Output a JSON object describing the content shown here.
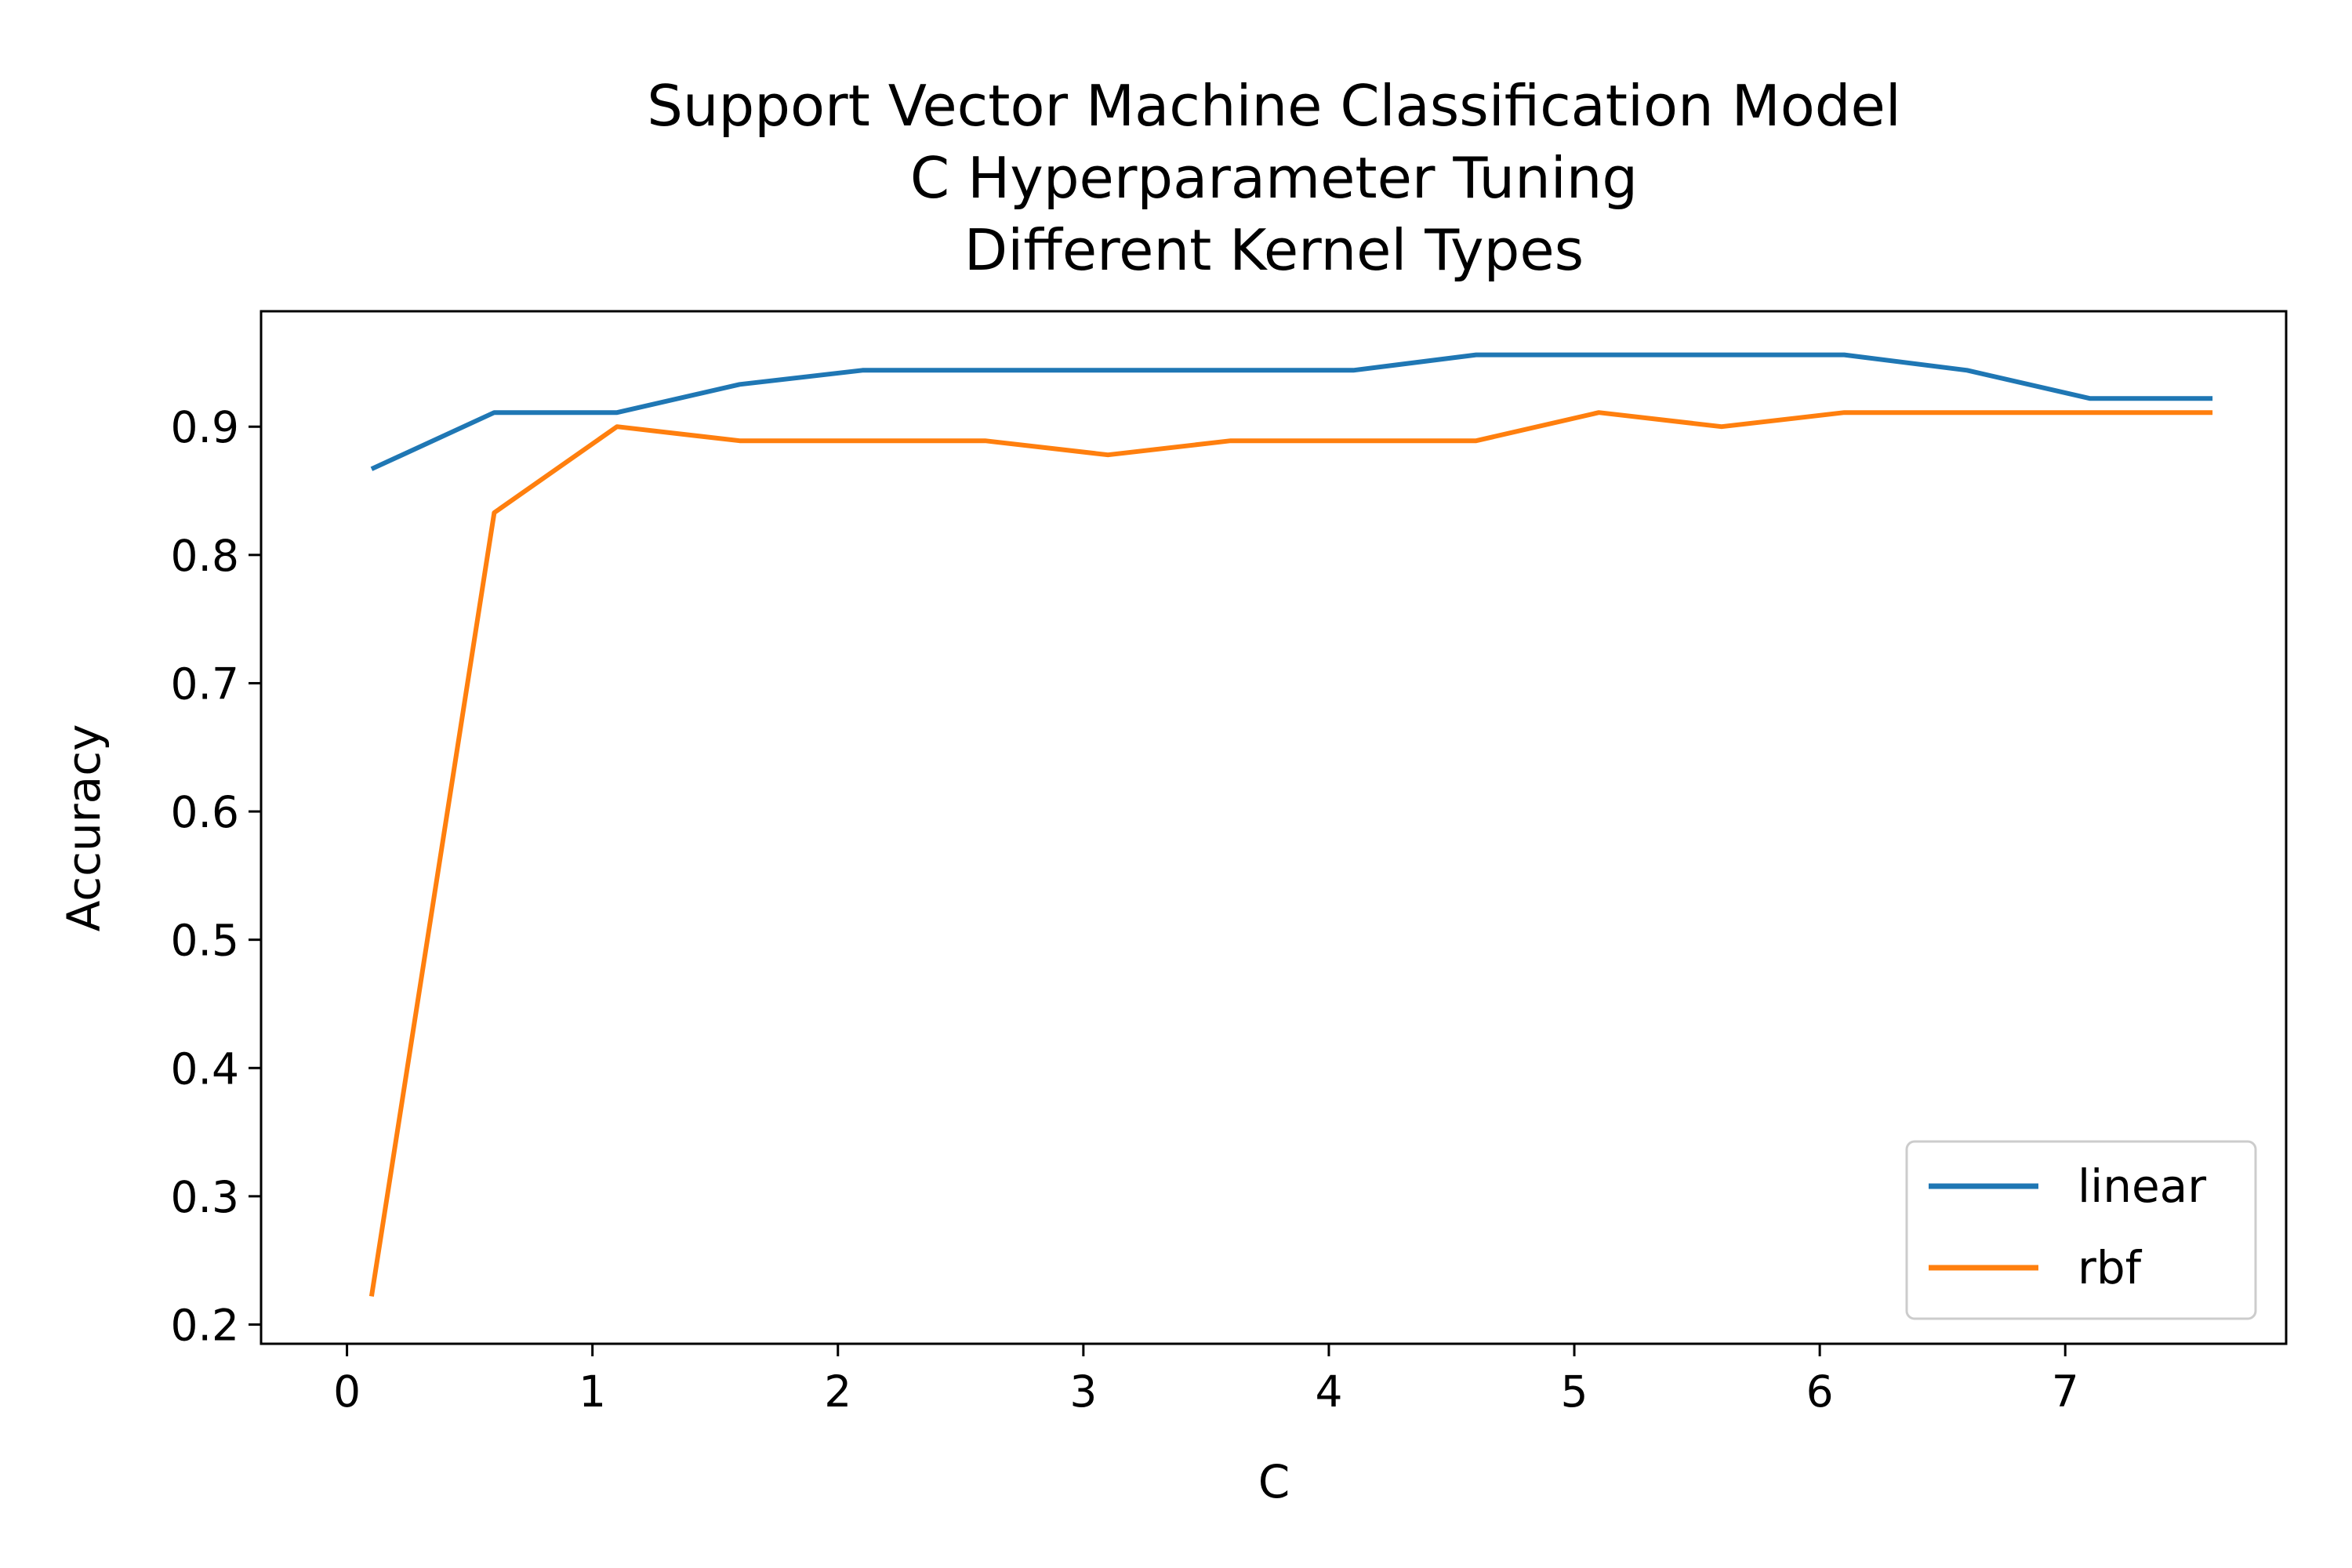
{
  "chart_data": {
    "type": "line",
    "title_lines": [
      "Support Vector Machine Classification Model",
      "C Hyperparameter Tuning",
      "Different Kernel Types"
    ],
    "xlabel": "C",
    "ylabel": "Accuracy",
    "xlim": [
      -0.35,
      7.9
    ],
    "ylim": [
      0.185,
      0.99
    ],
    "xticks": [
      0,
      1,
      2,
      3,
      4,
      5,
      6,
      7
    ],
    "xtick_labels": [
      "0",
      "1",
      "2",
      "3",
      "4",
      "5",
      "6",
      "7"
    ],
    "yticks": [
      0.2,
      0.3,
      0.4,
      0.5,
      0.6,
      0.7,
      0.8,
      0.9
    ],
    "ytick_labels": [
      "0.2",
      "0.3",
      "0.4",
      "0.5",
      "0.6",
      "0.7",
      "0.8",
      "0.9"
    ],
    "grid": false,
    "legend_position": "lower-right",
    "x": [
      0.1,
      0.6,
      1.1,
      1.6,
      2.1,
      2.6,
      3.1,
      3.6,
      4.1,
      4.6,
      5.1,
      5.6,
      6.1,
      6.6,
      7.1,
      7.6
    ],
    "series": [
      {
        "name": "linear",
        "color": "#1f77b4",
        "values": [
          0.867,
          0.911,
          0.911,
          0.933,
          0.944,
          0.944,
          0.944,
          0.944,
          0.944,
          0.956,
          0.956,
          0.956,
          0.956,
          0.944,
          0.922,
          0.922
        ]
      },
      {
        "name": "rbf",
        "color": "#ff7f0e",
        "values": [
          0.222,
          0.833,
          0.9,
          0.889,
          0.889,
          0.889,
          0.878,
          0.889,
          0.889,
          0.889,
          0.911,
          0.9,
          0.911,
          0.911,
          0.911,
          0.911
        ]
      }
    ]
  }
}
